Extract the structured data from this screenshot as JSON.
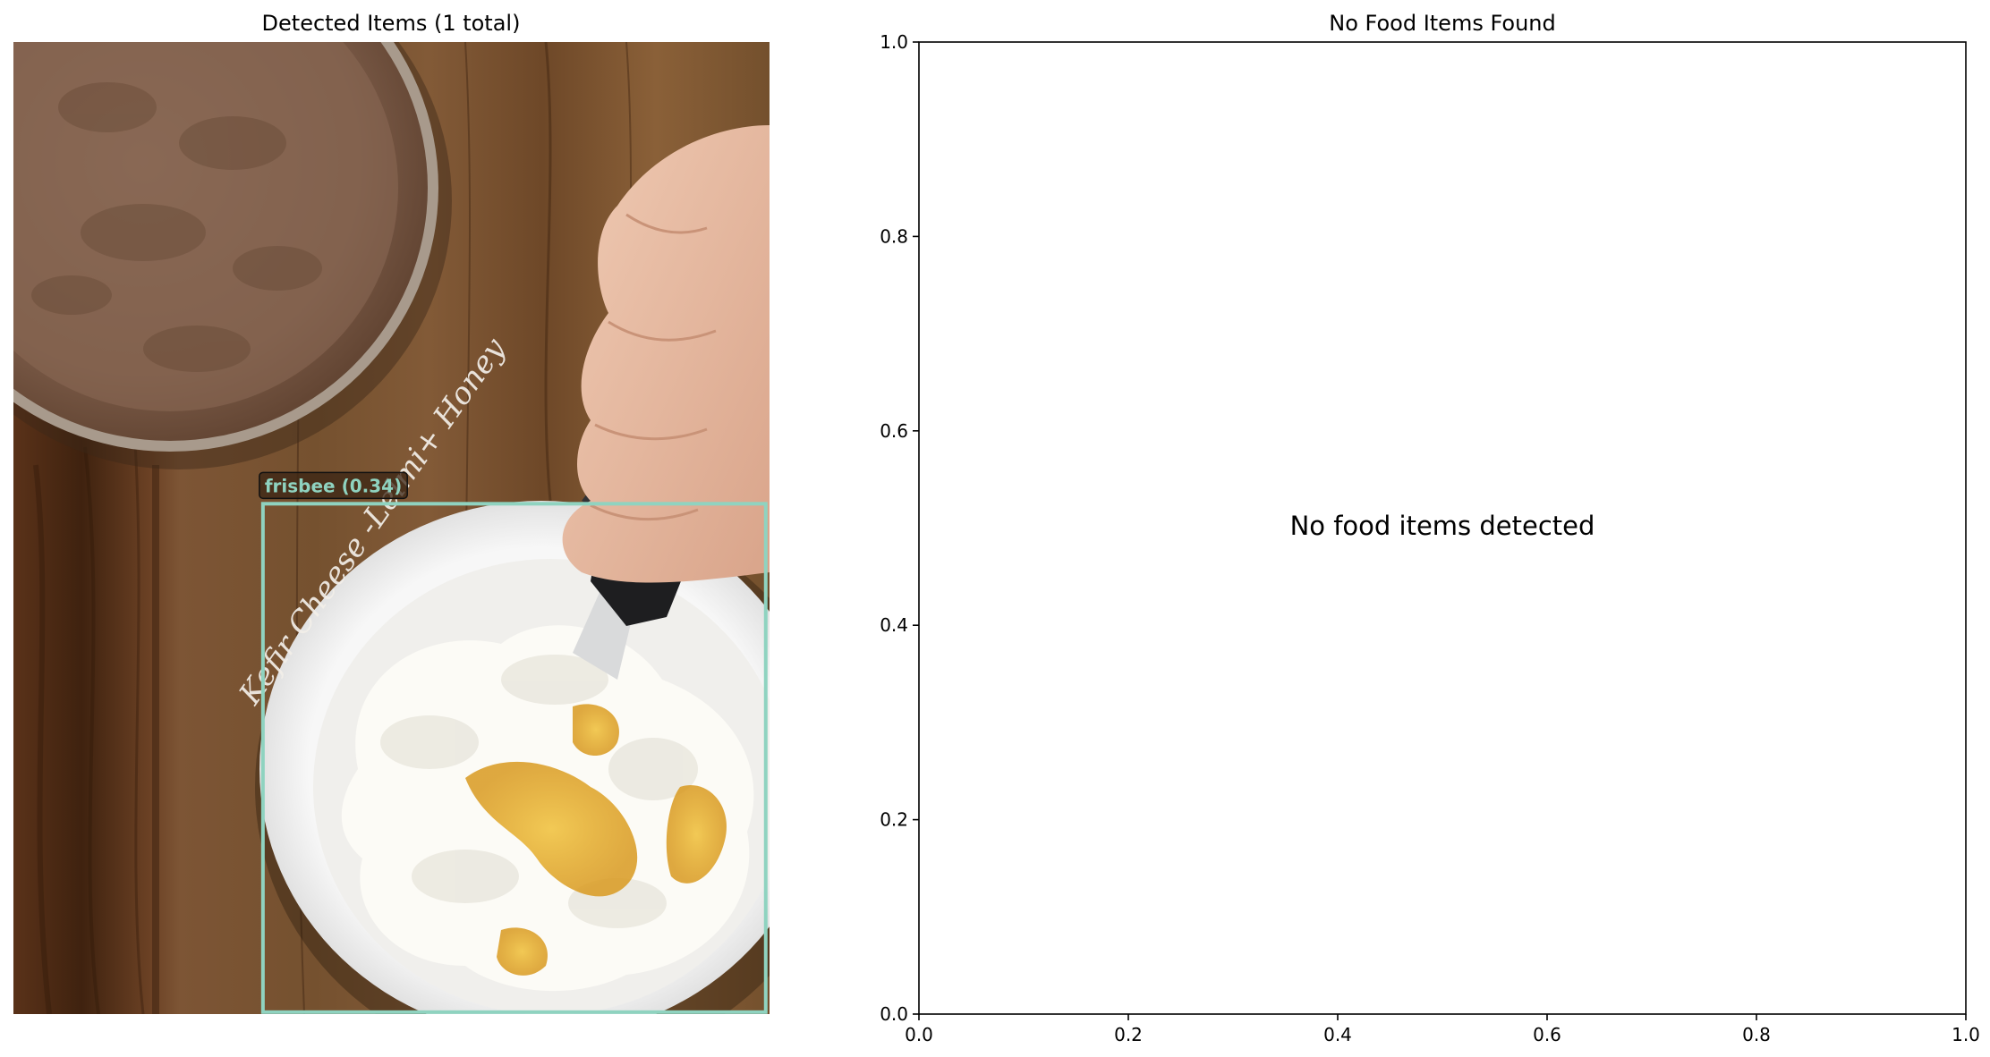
{
  "chart_data": [
    {
      "type": "image-detection",
      "title": "Detected Items (1 total)",
      "image_overlay_text": "Kefir Cheese -Lelmi+ Honey",
      "detections": [
        {
          "label": "frisbee (0.34)",
          "box_color": "#8fd3c0",
          "box": {
            "x0": 0.33,
            "y0": 0.475,
            "x1": 0.995,
            "y1": 0.998
          }
        }
      ],
      "colors": {
        "wood_light": "#7a5232",
        "wood_dark": "#4a2a14",
        "crust": "#7e5d4a",
        "bowl": "#f4f4f4",
        "cream": "#fbfaf4",
        "honey": "#e7b433",
        "skin": "#e8bba2"
      }
    },
    {
      "type": "scatter",
      "title": "No Food Items Found",
      "message": "No food items detected",
      "xlim": [
        0.0,
        1.0
      ],
      "ylim": [
        0.0,
        1.0
      ],
      "xticks": [
        0.0,
        0.2,
        0.4,
        0.6,
        0.8,
        1.0
      ],
      "yticks": [
        0.0,
        0.2,
        0.4,
        0.6,
        0.8,
        1.0
      ],
      "xtick_labels": [
        "0.0",
        "0.2",
        "0.4",
        "0.6",
        "0.8",
        "1.0"
      ],
      "ytick_labels": [
        "0.0",
        "0.2",
        "0.4",
        "0.6",
        "0.8",
        "1.0"
      ],
      "series": []
    }
  ]
}
